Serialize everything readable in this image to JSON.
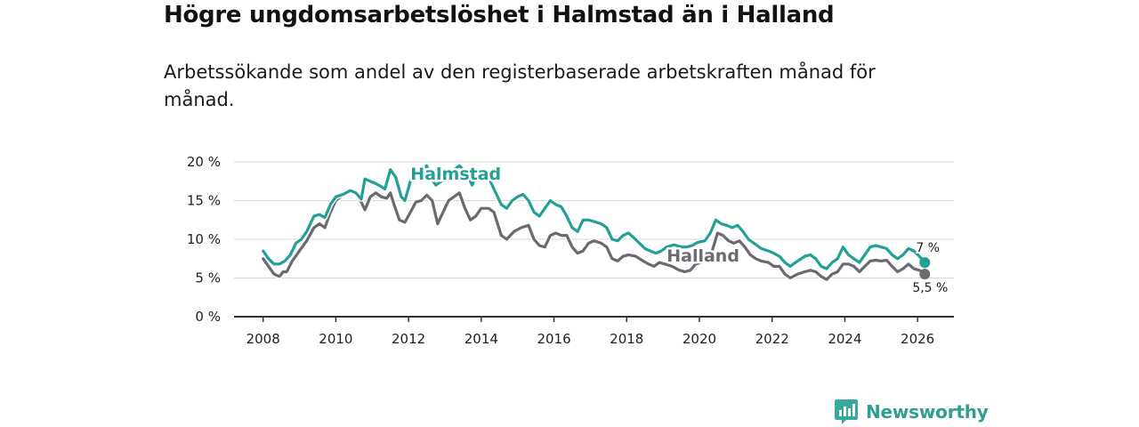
{
  "title": "Högre ungdomsarbetslöshet i Halmstad än i Halland",
  "subtitle": "Arbetssökande som andel av den registerbaserade arbetskraften månad för månad.",
  "brand": {
    "name": "Newsworthy",
    "logo_icon": "bar-chart-logo-icon",
    "color": "#2e9e93"
  },
  "chart_data": {
    "type": "line",
    "title": "Högre ungdomsarbetslöshet i Halmstad än i Halland",
    "xlabel": "",
    "ylabel": "",
    "xlim": [
      2007.2,
      2027.0
    ],
    "ylim": [
      0,
      20
    ],
    "x_ticks": [
      2008,
      2010,
      2012,
      2014,
      2016,
      2018,
      2020,
      2022,
      2024,
      2026
    ],
    "x_tick_labels": [
      "2008",
      "2010",
      "2012",
      "2014",
      "2016",
      "2018",
      "2020",
      "2022",
      "2024",
      "2026"
    ],
    "y_ticks": [
      0,
      5,
      10,
      15,
      20
    ],
    "y_tick_labels": [
      "0 %",
      "5 %",
      "10 %",
      "15 %",
      "20 %"
    ],
    "grid": true,
    "series": [
      {
        "name": "Halland",
        "label": "Halland",
        "color": "#6b6a70",
        "end_label": "5,5 %",
        "points": [
          [
            2008.0,
            7.5
          ],
          [
            2008.15,
            6.5
          ],
          [
            2008.3,
            5.5
          ],
          [
            2008.45,
            5.2
          ],
          [
            2008.55,
            5.8
          ],
          [
            2008.65,
            5.8
          ],
          [
            2008.8,
            7.2
          ],
          [
            2009.0,
            8.5
          ],
          [
            2009.2,
            9.8
          ],
          [
            2009.4,
            11.5
          ],
          [
            2009.55,
            12.0
          ],
          [
            2009.7,
            11.5
          ],
          [
            2009.85,
            13.5
          ],
          [
            2010.0,
            15.0
          ],
          [
            2010.2,
            15.8
          ],
          [
            2010.4,
            16.2
          ],
          [
            2010.55,
            16.0
          ],
          [
            2010.7,
            14.8
          ],
          [
            2010.8,
            13.8
          ],
          [
            2010.95,
            15.5
          ],
          [
            2011.1,
            16.0
          ],
          [
            2011.25,
            15.5
          ],
          [
            2011.4,
            15.3
          ],
          [
            2011.5,
            16.0
          ],
          [
            2011.6,
            14.5
          ],
          [
            2011.75,
            12.5
          ],
          [
            2011.9,
            12.2
          ],
          [
            2012.05,
            13.5
          ],
          [
            2012.2,
            14.8
          ],
          [
            2012.35,
            15.0
          ],
          [
            2012.5,
            15.7
          ],
          [
            2012.65,
            15.0
          ],
          [
            2012.8,
            12.0
          ],
          [
            2012.95,
            13.5
          ],
          [
            2013.1,
            15.0
          ],
          [
            2013.25,
            15.5
          ],
          [
            2013.4,
            16.0
          ],
          [
            2013.55,
            14.0
          ],
          [
            2013.7,
            12.5
          ],
          [
            2013.85,
            13.0
          ],
          [
            2014.0,
            14.0
          ],
          [
            2014.2,
            14.0
          ],
          [
            2014.35,
            13.5
          ],
          [
            2014.55,
            10.5
          ],
          [
            2014.7,
            10.0
          ],
          [
            2014.9,
            11.0
          ],
          [
            2015.1,
            11.5
          ],
          [
            2015.3,
            11.8
          ],
          [
            2015.45,
            10.0
          ],
          [
            2015.6,
            9.2
          ],
          [
            2015.75,
            9.0
          ],
          [
            2015.9,
            10.5
          ],
          [
            2016.05,
            10.8
          ],
          [
            2016.2,
            10.5
          ],
          [
            2016.35,
            10.5
          ],
          [
            2016.5,
            9.0
          ],
          [
            2016.65,
            8.2
          ],
          [
            2016.8,
            8.5
          ],
          [
            2016.95,
            9.5
          ],
          [
            2017.1,
            9.8
          ],
          [
            2017.3,
            9.5
          ],
          [
            2017.45,
            9.0
          ],
          [
            2017.6,
            7.5
          ],
          [
            2017.75,
            7.2
          ],
          [
            2017.9,
            7.8
          ],
          [
            2018.05,
            8.0
          ],
          [
            2018.25,
            7.8
          ],
          [
            2018.45,
            7.2
          ],
          [
            2018.6,
            6.8
          ],
          [
            2018.75,
            6.5
          ],
          [
            2018.9,
            7.0
          ],
          [
            2019.05,
            6.8
          ],
          [
            2019.25,
            6.5
          ],
          [
            2019.45,
            6.0
          ],
          [
            2019.6,
            5.8
          ],
          [
            2019.75,
            6.0
          ],
          [
            2019.9,
            6.8
          ],
          [
            2020.05,
            7.0
          ],
          [
            2020.2,
            8.0
          ],
          [
            2020.35,
            8.5
          ],
          [
            2020.5,
            10.8
          ],
          [
            2020.65,
            10.5
          ],
          [
            2020.8,
            9.8
          ],
          [
            2020.95,
            9.5
          ],
          [
            2021.1,
            9.8
          ],
          [
            2021.25,
            9.0
          ],
          [
            2021.4,
            8.0
          ],
          [
            2021.55,
            7.5
          ],
          [
            2021.7,
            7.2
          ],
          [
            2021.9,
            7.0
          ],
          [
            2022.05,
            6.5
          ],
          [
            2022.2,
            6.5
          ],
          [
            2022.35,
            5.5
          ],
          [
            2022.5,
            5.0
          ],
          [
            2022.7,
            5.5
          ],
          [
            2022.9,
            5.8
          ],
          [
            2023.05,
            6.0
          ],
          [
            2023.2,
            5.8
          ],
          [
            2023.35,
            5.2
          ],
          [
            2023.5,
            4.8
          ],
          [
            2023.65,
            5.5
          ],
          [
            2023.8,
            5.8
          ],
          [
            2023.95,
            6.8
          ],
          [
            2024.1,
            6.8
          ],
          [
            2024.25,
            6.5
          ],
          [
            2024.4,
            5.8
          ],
          [
            2024.55,
            6.5
          ],
          [
            2024.7,
            7.2
          ],
          [
            2024.85,
            7.3
          ],
          [
            2025.0,
            7.2
          ],
          [
            2025.15,
            7.3
          ],
          [
            2025.3,
            6.5
          ],
          [
            2025.45,
            5.8
          ],
          [
            2025.6,
            6.2
          ],
          [
            2025.75,
            6.8
          ],
          [
            2025.9,
            6.2
          ],
          [
            2026.05,
            6.0
          ],
          [
            2026.2,
            5.5
          ]
        ]
      },
      {
        "name": "Halmstad",
        "label": "Halmstad",
        "color": "#23a095",
        "end_label": "7 %",
        "points": [
          [
            2008.0,
            8.5
          ],
          [
            2008.15,
            7.5
          ],
          [
            2008.3,
            6.8
          ],
          [
            2008.45,
            6.8
          ],
          [
            2008.6,
            7.2
          ],
          [
            2008.75,
            8.0
          ],
          [
            2008.9,
            9.5
          ],
          [
            2009.05,
            10.0
          ],
          [
            2009.2,
            11.0
          ],
          [
            2009.4,
            13.0
          ],
          [
            2009.55,
            13.2
          ],
          [
            2009.7,
            12.8
          ],
          [
            2009.85,
            14.5
          ],
          [
            2010.0,
            15.5
          ],
          [
            2010.2,
            15.8
          ],
          [
            2010.4,
            16.3
          ],
          [
            2010.55,
            16.0
          ],
          [
            2010.7,
            15.2
          ],
          [
            2010.8,
            17.8
          ],
          [
            2010.95,
            17.5
          ],
          [
            2011.1,
            17.2
          ],
          [
            2011.25,
            16.8
          ],
          [
            2011.35,
            16.5
          ],
          [
            2011.5,
            19.0
          ],
          [
            2011.65,
            18.0
          ],
          [
            2011.8,
            15.5
          ],
          [
            2011.9,
            15.0
          ],
          [
            2012.05,
            17.5
          ],
          [
            2012.2,
            18.5
          ],
          [
            2012.35,
            19.0
          ],
          [
            2012.5,
            19.5
          ],
          [
            2012.6,
            18.0
          ],
          [
            2012.75,
            17.0
          ],
          [
            2012.9,
            17.5
          ],
          [
            2013.05,
            18.2
          ],
          [
            2013.25,
            19.0
          ],
          [
            2013.4,
            19.5
          ],
          [
            2013.6,
            18.5
          ],
          [
            2013.75,
            17.0
          ],
          [
            2013.9,
            18.5
          ],
          [
            2014.0,
            19.0
          ],
          [
            2014.15,
            18.5
          ],
          [
            2014.35,
            16.5
          ],
          [
            2014.55,
            14.5
          ],
          [
            2014.7,
            14.0
          ],
          [
            2014.85,
            15.0
          ],
          [
            2015.0,
            15.5
          ],
          [
            2015.15,
            15.8
          ],
          [
            2015.3,
            15.0
          ],
          [
            2015.45,
            13.5
          ],
          [
            2015.6,
            13.0
          ],
          [
            2015.75,
            14.0
          ],
          [
            2015.9,
            15.0
          ],
          [
            2016.05,
            14.5
          ],
          [
            2016.2,
            14.2
          ],
          [
            2016.35,
            13.0
          ],
          [
            2016.5,
            11.5
          ],
          [
            2016.65,
            11.0
          ],
          [
            2016.8,
            12.5
          ],
          [
            2016.95,
            12.5
          ],
          [
            2017.1,
            12.3
          ],
          [
            2017.3,
            12.0
          ],
          [
            2017.45,
            11.5
          ],
          [
            2017.6,
            10.0
          ],
          [
            2017.75,
            9.8
          ],
          [
            2017.9,
            10.5
          ],
          [
            2018.05,
            10.8
          ],
          [
            2018.2,
            10.2
          ],
          [
            2018.35,
            9.5
          ],
          [
            2018.5,
            8.8
          ],
          [
            2018.65,
            8.5
          ],
          [
            2018.8,
            8.2
          ],
          [
            2018.95,
            8.5
          ],
          [
            2019.1,
            9.0
          ],
          [
            2019.3,
            9.3
          ],
          [
            2019.5,
            9.0
          ],
          [
            2019.65,
            9.0
          ],
          [
            2019.8,
            9.2
          ],
          [
            2019.95,
            9.6
          ],
          [
            2020.15,
            9.8
          ],
          [
            2020.3,
            10.8
          ],
          [
            2020.45,
            12.5
          ],
          [
            2020.6,
            12.0
          ],
          [
            2020.75,
            11.8
          ],
          [
            2020.9,
            11.5
          ],
          [
            2021.05,
            11.8
          ],
          [
            2021.2,
            11.0
          ],
          [
            2021.35,
            10.0
          ],
          [
            2021.5,
            9.5
          ],
          [
            2021.7,
            8.8
          ],
          [
            2021.9,
            8.5
          ],
          [
            2022.05,
            8.2
          ],
          [
            2022.2,
            7.8
          ],
          [
            2022.35,
            7.0
          ],
          [
            2022.5,
            6.5
          ],
          [
            2022.7,
            7.2
          ],
          [
            2022.9,
            7.8
          ],
          [
            2023.05,
            8.0
          ],
          [
            2023.2,
            7.5
          ],
          [
            2023.35,
            6.5
          ],
          [
            2023.5,
            6.2
          ],
          [
            2023.65,
            7.0
          ],
          [
            2023.8,
            7.5
          ],
          [
            2023.95,
            9.0
          ],
          [
            2024.1,
            8.0
          ],
          [
            2024.25,
            7.5
          ],
          [
            2024.4,
            7.0
          ],
          [
            2024.55,
            8.0
          ],
          [
            2024.7,
            9.0
          ],
          [
            2024.85,
            9.2
          ],
          [
            2025.0,
            9.0
          ],
          [
            2025.15,
            8.8
          ],
          [
            2025.3,
            8.0
          ],
          [
            2025.45,
            7.5
          ],
          [
            2025.6,
            8.0
          ],
          [
            2025.75,
            8.8
          ],
          [
            2025.9,
            8.5
          ],
          [
            2026.05,
            7.8
          ],
          [
            2026.2,
            7.0
          ]
        ]
      }
    ]
  }
}
